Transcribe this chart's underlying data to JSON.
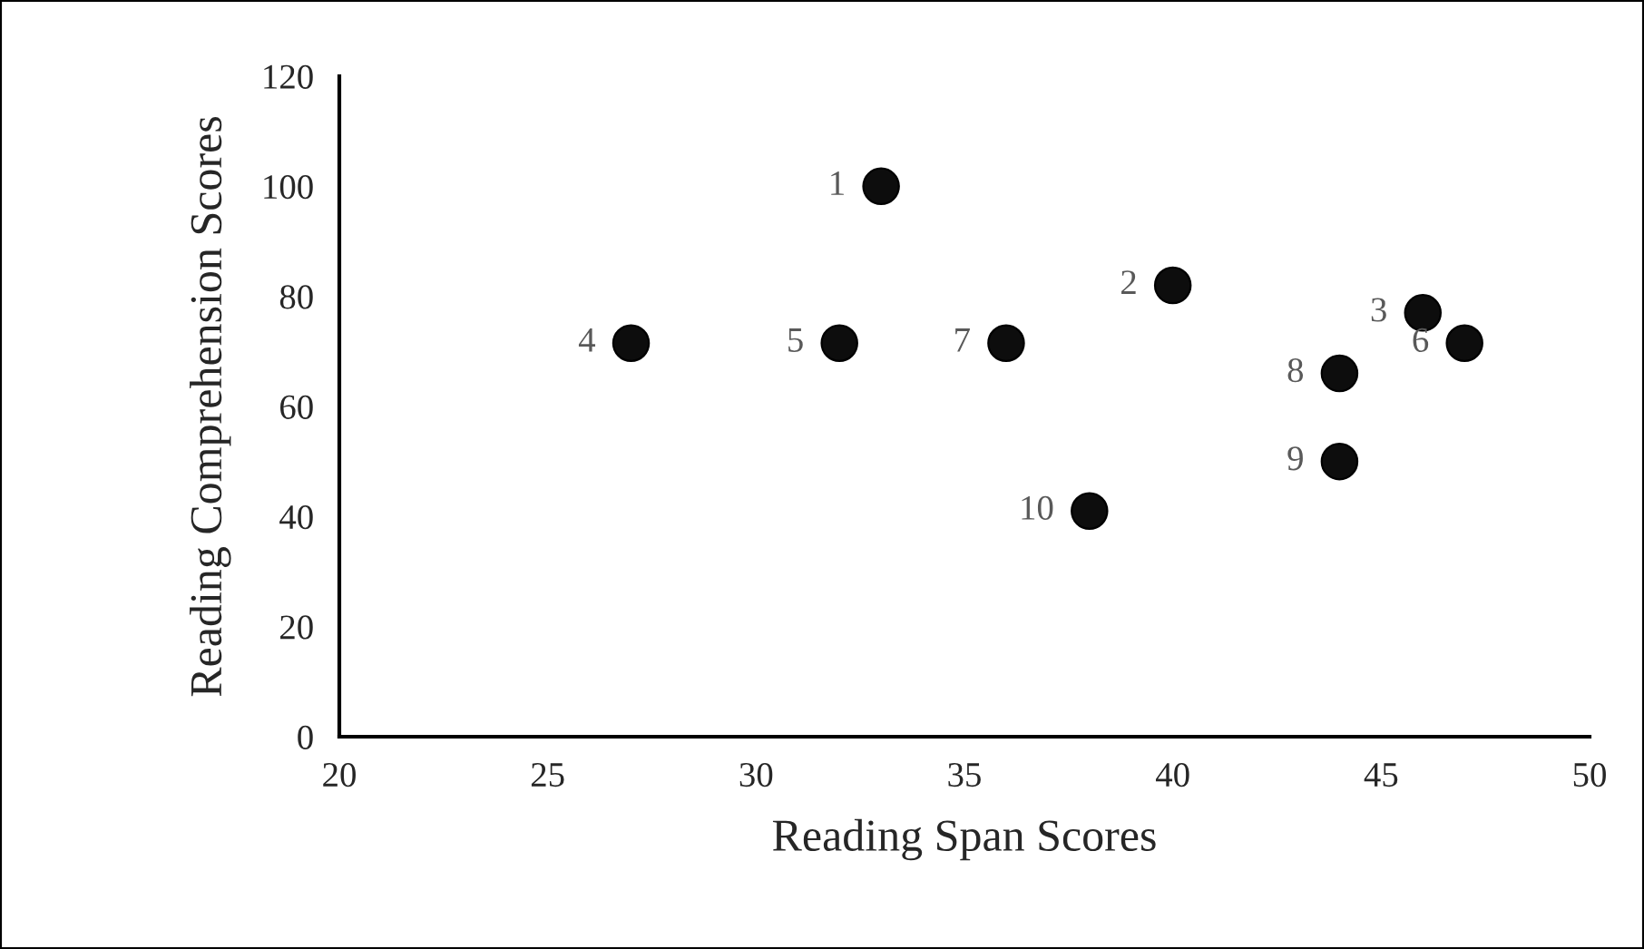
{
  "chart_data": {
    "type": "scatter",
    "xlabel": "Reading Span Scores",
    "ylabel": "Reading Comprehension Scores",
    "x": [
      33,
      40,
      46,
      27,
      32,
      47,
      36,
      44,
      44,
      38
    ],
    "series": [
      {
        "color": "#0d0d0d",
        "values": [
          100,
          82,
          77,
          71.5,
          71.5,
          71.5,
          71.5,
          66,
          50,
          41
        ]
      }
    ],
    "annotations": [
      {
        "text": "1",
        "x": 33,
        "y": 100
      },
      {
        "text": "2",
        "x": 40,
        "y": 82
      },
      {
        "text": "3",
        "x": 46,
        "y": 77
      },
      {
        "text": "4",
        "x": 27,
        "y": 71.5
      },
      {
        "text": "5",
        "x": 32,
        "y": 71.5
      },
      {
        "text": "6",
        "x": 47,
        "y": 71.5
      },
      {
        "text": "7",
        "x": 36,
        "y": 71.5
      },
      {
        "text": "8",
        "x": 44,
        "y": 66
      },
      {
        "text": "9",
        "x": 44,
        "y": 50
      },
      {
        "text": "10",
        "x": 38,
        "y": 41
      }
    ],
    "xlim": [
      20,
      50
    ],
    "xticks": [
      20,
      25,
      30,
      35,
      40,
      45,
      50
    ],
    "ylim": [
      0,
      120
    ],
    "yticks": [
      0,
      20,
      40,
      60,
      80,
      100,
      120
    ],
    "marker": "circle",
    "grid": false,
    "legend": false
  }
}
